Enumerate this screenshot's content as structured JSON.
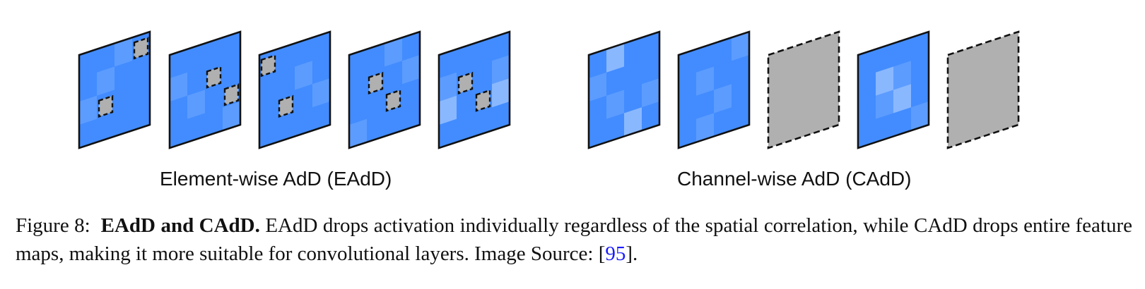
{
  "figure": {
    "group_labels": {
      "element_wise": "Element-wise AdD (EAdD)",
      "channel_wise": "Channel-wise AdD (CAdD)"
    },
    "colors": {
      "map_base": "#428cff",
      "map_light": "#5c9cff",
      "map_lighter": "#8ab8ff",
      "dropped": "#b0b0b0",
      "outline": "#111111"
    },
    "element_wise_maps": [
      {
        "dropped_cells": [
          [
            1,
            2
          ],
          [
            3,
            0
          ]
        ],
        "light_cells": [
          [
            0,
            2
          ],
          [
            1,
            1
          ],
          [
            2,
            0
          ]
        ]
      },
      {
        "dropped_cells": [
          [
            2,
            1
          ],
          [
            3,
            2
          ]
        ],
        "light_cells": [
          [
            0,
            1
          ],
          [
            1,
            2
          ],
          [
            3,
            3
          ]
        ]
      },
      {
        "dropped_cells": [
          [
            1,
            2
          ],
          [
            0,
            0
          ]
        ],
        "light_cells": [
          [
            2,
            1
          ],
          [
            3,
            2
          ]
        ]
      },
      {
        "dropped_cells": [
          [
            2,
            2
          ],
          [
            1,
            1
          ]
        ],
        "light_cells": [
          [
            3,
            1
          ],
          [
            0,
            3
          ],
          [
            2,
            0
          ]
        ]
      },
      {
        "dropped_cells": [
          [
            2,
            2
          ],
          [
            1,
            1
          ]
        ],
        "light_cells": [
          [
            0,
            1
          ],
          [
            3,
            1
          ]
        ],
        "lighter_cells": [
          [
            0,
            2
          ],
          [
            3,
            2
          ]
        ]
      }
    ],
    "channel_wise_maps": [
      {
        "dropped": false,
        "light_cells": [
          [
            0,
            1
          ],
          [
            1,
            2
          ],
          [
            3,
            2
          ]
        ],
        "lighter_cells": [
          [
            2,
            3
          ],
          [
            1,
            0
          ]
        ]
      },
      {
        "dropped": false,
        "light_cells": [
          [
            1,
            3
          ],
          [
            2,
            2
          ],
          [
            1,
            1
          ],
          [
            3,
            0
          ]
        ]
      },
      {
        "dropped": true
      },
      {
        "dropped": false,
        "light_cells": [
          [
            1,
            2
          ],
          [
            2,
            1
          ],
          [
            3,
            3
          ]
        ],
        "lighter_cells": [
          [
            2,
            2
          ],
          [
            1,
            1
          ]
        ]
      },
      {
        "dropped": true
      }
    ]
  },
  "caption": {
    "prefix": "Figure 8:",
    "bold": "EAdD and CAdD.",
    "text": "EAdD drops activation individually regardless of the spatial correlation, while CAdD drops entire feature maps, making it more suitable for convolutional layers. Image Source:",
    "ref_open": "[",
    "ref": "95",
    "ref_close": "]."
  }
}
